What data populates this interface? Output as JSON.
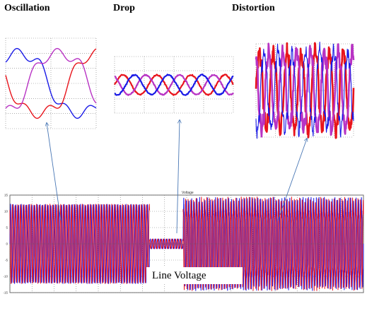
{
  "titles": {
    "oscillation": "Oscillation",
    "drop": "Drop",
    "distortion": "Distortion"
  },
  "main_plot": {
    "title": "Voltage",
    "caption": "Line Voltage",
    "y_ticks": [
      "15",
      "10",
      "5",
      "0",
      "-5",
      "-10",
      "-15"
    ]
  },
  "colors": {
    "phase_a": "#e8141c",
    "phase_b": "#1a1ae6",
    "phase_c": "#b833c4",
    "grid": "#7a7a7a",
    "arrow": "#4a78b5"
  },
  "chart_data": [
    {
      "type": "line",
      "name_panel": "oscillation-inset",
      "title": "",
      "series": [
        {
          "color": "#1a1ae6",
          "phase_deg": 0
        },
        {
          "color": "#e8141c",
          "phase_deg": 120
        },
        {
          "color": "#b833c4",
          "phase_deg": 240
        }
      ],
      "cycles": 0.75,
      "amplitude_frac": 0.72,
      "harmonic_frac": 0.18
    },
    {
      "type": "line",
      "name_panel": "drop-inset",
      "title": "",
      "series": [
        {
          "color": "#e8141c",
          "phase_deg": 0
        },
        {
          "color": "#b833c4",
          "phase_deg": 120
        },
        {
          "color": "#1a1ae6",
          "phase_deg": 240
        }
      ],
      "cycles": 3.5,
      "amplitude_frac": 0.35
    },
    {
      "type": "line",
      "name_panel": "distortion-inset",
      "title": "",
      "series": [
        {
          "color": "#e8141c",
          "phase_deg": 0
        },
        {
          "color": "#b833c4",
          "phase_deg": 120
        },
        {
          "color": "#1a1ae6",
          "phase_deg": 240
        }
      ],
      "cycles": 7,
      "amplitude_frac": 0.85
    },
    {
      "type": "line",
      "name_panel": "line-voltage-main",
      "title": "Voltage",
      "ylim": [
        -15,
        15
      ],
      "segments": [
        {
          "label": "oscillation",
          "t_start": 0.0,
          "t_end": 0.395,
          "amplitude": 12,
          "cycles": 52
        },
        {
          "label": "drop",
          "t_start": 0.395,
          "t_end": 0.49,
          "amplitude": 1.5,
          "cycles": 12
        },
        {
          "label": "distortion",
          "t_start": 0.49,
          "t_end": 1.0,
          "amplitude": 13,
          "cycles": 68
        }
      ],
      "series": [
        {
          "color": "#1a1ae6",
          "phase_deg": 0
        },
        {
          "color": "#e8141c",
          "phase_deg": 120
        }
      ]
    }
  ]
}
